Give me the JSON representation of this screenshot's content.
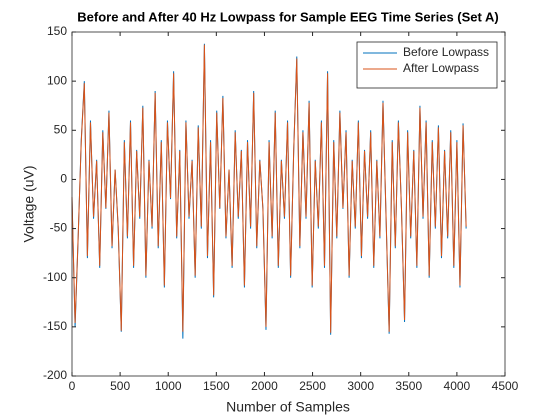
{
  "chart_data": {
    "type": "line",
    "title": "Before and After 40 Hz Lowpass for Sample EEG Time Series (Set A)",
    "x_label": "Number of Samples",
    "y_label": "Voltage (uV)",
    "x": [
      0,
      32,
      64,
      96,
      128,
      160,
      192,
      224,
      256,
      288,
      320,
      352,
      384,
      416,
      448,
      480,
      512,
      544,
      576,
      608,
      640,
      672,
      704,
      736,
      768,
      800,
      832,
      864,
      896,
      928,
      960,
      992,
      1024,
      1056,
      1088,
      1120,
      1152,
      1184,
      1216,
      1248,
      1280,
      1312,
      1344,
      1376,
      1408,
      1440,
      1472,
      1504,
      1536,
      1568,
      1600,
      1632,
      1664,
      1696,
      1728,
      1760,
      1792,
      1824,
      1856,
      1888,
      1920,
      1952,
      1984,
      2016,
      2048,
      2080,
      2112,
      2144,
      2176,
      2208,
      2240,
      2272,
      2304,
      2336,
      2368,
      2400,
      2432,
      2464,
      2496,
      2528,
      2560,
      2592,
      2624,
      2656,
      2688,
      2720,
      2752,
      2784,
      2816,
      2848,
      2880,
      2912,
      2944,
      2976,
      3008,
      3040,
      3072,
      3104,
      3136,
      3168,
      3200,
      3232,
      3264,
      3296,
      3328,
      3360,
      3392,
      3424,
      3456,
      3488,
      3520,
      3552,
      3584,
      3616,
      3648,
      3680,
      3712,
      3744,
      3776,
      3808,
      3840,
      3872,
      3904,
      3936,
      3968,
      4000,
      4032,
      4064,
      4096
    ],
    "series": [
      {
        "name": "Before Lowpass",
        "color": "#0072bd",
        "values": [
          -20,
          -150,
          -60,
          40,
          100,
          -80,
          60,
          -40,
          20,
          -90,
          50,
          -30,
          70,
          -70,
          10,
          -50,
          -155,
          40,
          -60,
          60,
          -90,
          30,
          -40,
          75,
          -100,
          20,
          -50,
          90,
          -70,
          40,
          -110,
          60,
          -20,
          110,
          -60,
          30,
          -162,
          60,
          -40,
          20,
          -100,
          55,
          -50,
          138,
          -80,
          40,
          -120,
          70,
          -30,
          85,
          -60,
          10,
          -90,
          50,
          -40,
          30,
          -110,
          40,
          -50,
          90,
          -70,
          20,
          -30,
          -153,
          40,
          -60,
          70,
          -90,
          20,
          -40,
          60,
          -100,
          30,
          125,
          -70,
          50,
          -40,
          80,
          -110,
          20,
          -50,
          60,
          -90,
          110,
          -158,
          40,
          -60,
          70,
          -30,
          50,
          -100,
          20,
          -50,
          60,
          -80,
          30,
          -40,
          50,
          -90,
          20,
          -60,
          80,
          -40,
          -157,
          40,
          -70,
          60,
          -30,
          -145,
          50,
          -60,
          30,
          -90,
          75,
          -40,
          60,
          -100,
          40,
          -50,
          55,
          -80,
          30,
          -60,
          50,
          -90,
          40,
          -110,
          57,
          -50
        ]
      },
      {
        "name": "After Lowpass",
        "color": "#d95319",
        "values": [
          -18,
          -146,
          -58,
          38,
          98,
          -78,
          58,
          -38,
          19,
          -88,
          48,
          -29,
          68,
          -68,
          10,
          -48,
          -154,
          38,
          -58,
          58,
          -88,
          29,
          -38,
          73,
          -98,
          19,
          -48,
          88,
          -68,
          38,
          -108,
          58,
          -19,
          108,
          -58,
          29,
          -155,
          58,
          -38,
          19,
          -98,
          53,
          -48,
          137,
          -78,
          38,
          -118,
          68,
          -29,
          83,
          -58,
          10,
          -88,
          48,
          -38,
          29,
          -108,
          38,
          -48,
          88,
          -68,
          19,
          -29,
          -150,
          38,
          -58,
          68,
          -88,
          19,
          -38,
          58,
          -98,
          29,
          123,
          -68,
          48,
          -38,
          78,
          -108,
          19,
          -48,
          58,
          -88,
          108,
          -156,
          38,
          -58,
          68,
          -29,
          48,
          -98,
          19,
          -48,
          58,
          -78,
          29,
          -38,
          48,
          -88,
          19,
          -58,
          78,
          -38,
          -155,
          38,
          -68,
          58,
          -29,
          -143,
          48,
          -58,
          29,
          -88,
          73,
          -38,
          58,
          -98,
          38,
          -48,
          53,
          -78,
          29,
          -58,
          48,
          -88,
          38,
          -108,
          55,
          -48
        ]
      }
    ],
    "xlim": [
      0,
      4500
    ],
    "xticks": [
      0,
      500,
      1000,
      1500,
      2000,
      2500,
      3000,
      3500,
      4000,
      4500
    ],
    "ylim": [
      -200,
      150
    ],
    "yticks": [
      -200,
      -150,
      -100,
      -50,
      0,
      50,
      100,
      150
    ],
    "legend": "northeast"
  }
}
